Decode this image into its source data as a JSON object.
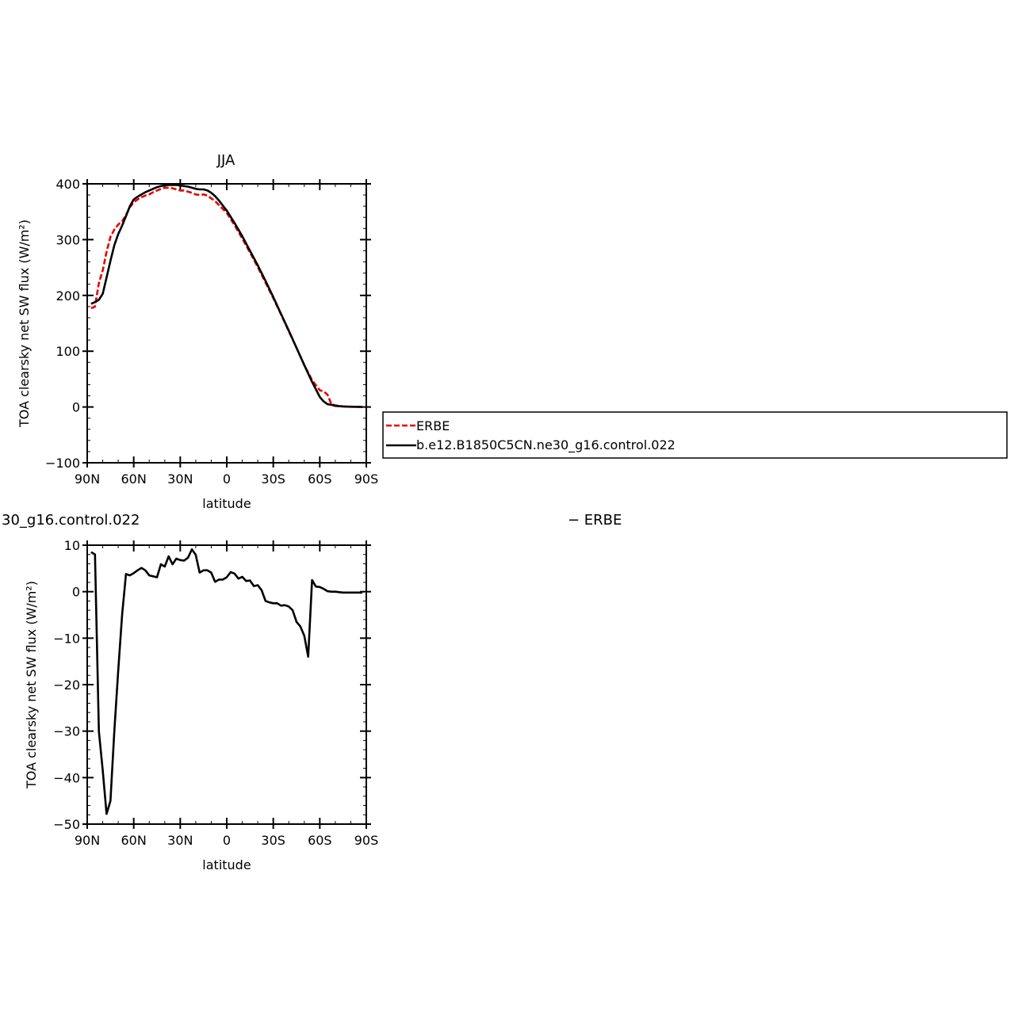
{
  "chart_data": [
    {
      "type": "line",
      "title": "JJA",
      "xlabel": "latitude",
      "ylabel": "TOA clearsky net SW flux (W/m²)",
      "xlim": [
        90,
        -90
      ],
      "ylim": [
        -100,
        400
      ],
      "x_ticks": [
        90,
        60,
        30,
        0,
        -30,
        -60,
        -90
      ],
      "x_tick_labels": [
        "90N",
        "60N",
        "30N",
        "0",
        "30S",
        "60S",
        "90S"
      ],
      "y_ticks": [
        -100,
        0,
        100,
        200,
        300,
        400
      ],
      "y_tick_labels": [
        "−100",
        "0",
        "100",
        "200",
        "300",
        "400"
      ],
      "legend": {
        "placement": "right",
        "entries": [
          "ERBE",
          "b.e12.B1850C5CN.ne30_g16.control.022"
        ]
      },
      "series": [
        {
          "name": "ERBE",
          "color": "#e60000",
          "style": "dashed",
          "x": [
            87.5,
            85,
            82.5,
            80,
            77.5,
            75,
            72.5,
            70,
            67.5,
            65,
            62.5,
            60,
            57.5,
            55,
            52.5,
            50,
            47.5,
            45,
            42.5,
            40,
            37.5,
            35,
            32.5,
            30,
            27.5,
            25,
            22.5,
            20,
            17.5,
            15,
            12.5,
            10,
            7.5,
            5,
            2.5,
            0,
            -5,
            -10,
            -15,
            -20,
            -25,
            -30,
            -35,
            -40,
            -45,
            -50,
            -55,
            -60,
            -62.5,
            -65,
            -67.5,
            -70,
            -75,
            -80,
            -85,
            -87.5
          ],
          "y": [
            177,
            180,
            222,
            245,
            278,
            305,
            318,
            327,
            333,
            344,
            358,
            367,
            372,
            376,
            379,
            381,
            385,
            388,
            391,
            393,
            393,
            392,
            390,
            388,
            388,
            386,
            384,
            381,
            380,
            381,
            379,
            374,
            369,
            362,
            355,
            348,
            326,
            302,
            277,
            251,
            223,
            195,
            166,
            136,
            106,
            75,
            48,
            30,
            28,
            22,
            5,
            3,
            1,
            0.5,
            0.3,
            0
          ]
        },
        {
          "name": "b.e12.B1850C5CN.ne30_g16.control.022",
          "color": "#000000",
          "style": "solid",
          "x": [
            87.5,
            85,
            82.5,
            80,
            77.5,
            75,
            72.5,
            70,
            67.5,
            65,
            62.5,
            60,
            57.5,
            55,
            52.5,
            50,
            47.5,
            45,
            42.5,
            40,
            37.5,
            35,
            32.5,
            30,
            27.5,
            25,
            22.5,
            20,
            17.5,
            15,
            12.5,
            10,
            7.5,
            5,
            2.5,
            0,
            -5,
            -10,
            -15,
            -20,
            -25,
            -30,
            -35,
            -40,
            -45,
            -50,
            -55,
            -60,
            -62.5,
            -65,
            -67.5,
            -70,
            -75,
            -80,
            -85,
            -87.5
          ],
          "y": [
            185,
            188,
            192,
            203,
            232,
            262,
            290,
            310,
            325,
            342,
            360,
            372,
            377,
            381,
            385,
            388,
            391,
            394,
            396,
            397,
            398,
            398,
            398,
            397,
            396,
            395,
            393,
            391,
            390,
            390,
            388,
            384,
            378,
            370,
            361,
            352,
            330,
            306,
            280,
            254,
            226,
            197,
            167,
            137,
            106,
            75,
            45,
            18,
            10,
            5,
            4,
            2,
            1,
            0.4,
            0.2,
            0
          ]
        }
      ]
    },
    {
      "type": "line",
      "title": "30_g16.control.022",
      "title_right": "− ERBE",
      "xlabel": "latitude",
      "ylabel": "TOA clearsky net SW flux (W/m²)",
      "xlim": [
        90,
        -90
      ],
      "ylim": [
        -50,
        10
      ],
      "x_ticks": [
        90,
        60,
        30,
        0,
        -30,
        -60,
        -90
      ],
      "x_tick_labels": [
        "90N",
        "60N",
        "30N",
        "0",
        "30S",
        "60S",
        "90S"
      ],
      "y_ticks": [
        -50,
        -40,
        -30,
        -20,
        -10,
        0,
        10
      ],
      "y_tick_labels": [
        "−50",
        "−40",
        "−30",
        "−20",
        "−10",
        "0",
        "10"
      ],
      "series": [
        {
          "color": "#000000",
          "style": "solid",
          "x": [
            87.5,
            85,
            82.5,
            80,
            77.5,
            75,
            72.5,
            70,
            67.5,
            65,
            62.5,
            60,
            57.5,
            55,
            52.5,
            50,
            47.5,
            45,
            42.5,
            40,
            37.5,
            35,
            32.5,
            30,
            27.5,
            25,
            22.5,
            20,
            17.5,
            15,
            12.5,
            10,
            7.5,
            5,
            2.5,
            0,
            -2.5,
            -5,
            -7.5,
            -10,
            -12.5,
            -15,
            -17.5,
            -20,
            -22.5,
            -25,
            -27.5,
            -30,
            -32.5,
            -35,
            -37.5,
            -40,
            -42.5,
            -45,
            -47.5,
            -50,
            -52.5,
            -55,
            -57.5,
            -60,
            -62.5,
            -65,
            -67.5,
            -70,
            -72.5,
            -75,
            -77.5,
            -80,
            -82.5,
            -85,
            -87.5
          ],
          "y": [
            8.5,
            8,
            -30,
            -38.5,
            -47.8,
            -45,
            -30,
            -17,
            -5,
            3.8,
            3.5,
            4,
            4.6,
            5.1,
            4.6,
            3.5,
            3.3,
            3.1,
            5.9,
            5.4,
            7.6,
            5.9,
            7.1,
            6.8,
            6.7,
            7.3,
            9.1,
            7.9,
            4.1,
            4.6,
            4.6,
            4.1,
            2.1,
            2.6,
            2.6,
            3.1,
            4.2,
            3.9,
            2.8,
            3.2,
            2.3,
            2.4,
            1.2,
            1.4,
            0.3,
            -2,
            -2.3,
            -2.5,
            -2.5,
            -3,
            -2.9,
            -3.2,
            -4,
            -6.5,
            -7.5,
            -9.5,
            -14,
            2.5,
            1.1,
            1,
            0.6,
            0.1,
            0,
            0,
            -0.1,
            -0.2,
            -0.2,
            -0.2,
            -0.2,
            -0.2,
            -0.2
          ]
        }
      ]
    }
  ]
}
